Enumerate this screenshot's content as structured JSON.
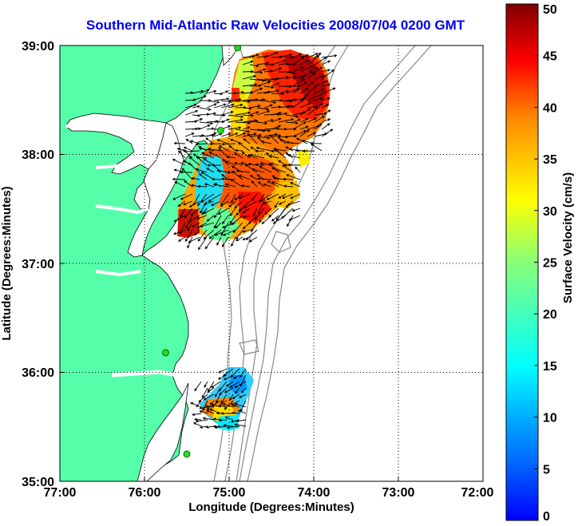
{
  "title": "Southern Mid-Atlantic Raw Velocities 2008/07/04 0200 GMT",
  "xlabel": "Longitude (Degrees:Minutes)",
  "ylabel": "Latitude (Degrees:Minutes)",
  "x_ticks": [
    "77:00",
    "76:00",
    "75:00",
    "74:00",
    "73:00",
    "72:00"
  ],
  "y_ticks": [
    "39:00",
    "38:00",
    "37:00",
    "36:00",
    "35:00"
  ],
  "colorbar": {
    "label": "Surface Velocity (cm/s)",
    "ticks": [
      "0",
      "5",
      "10",
      "15",
      "20",
      "25",
      "30",
      "35",
      "40",
      "45",
      "50"
    ],
    "min": 0,
    "max": 50,
    "colormap": "jet"
  },
  "colors": {
    "land": "#55ffaa",
    "coast": "#000000",
    "bathymetry": "#888888",
    "grid": "#000000",
    "station": "#22dd22"
  },
  "map": {
    "lon_range": [
      -77,
      -72
    ],
    "lat_range": [
      35,
      39
    ],
    "stations": [
      {
        "lon": -74.9,
        "lat": 38.98
      },
      {
        "lon": -75.1,
        "lat": 38.22
      },
      {
        "lon": -75.75,
        "lat": 36.18
      },
      {
        "lon": -75.5,
        "lat": 35.25
      }
    ]
  }
}
